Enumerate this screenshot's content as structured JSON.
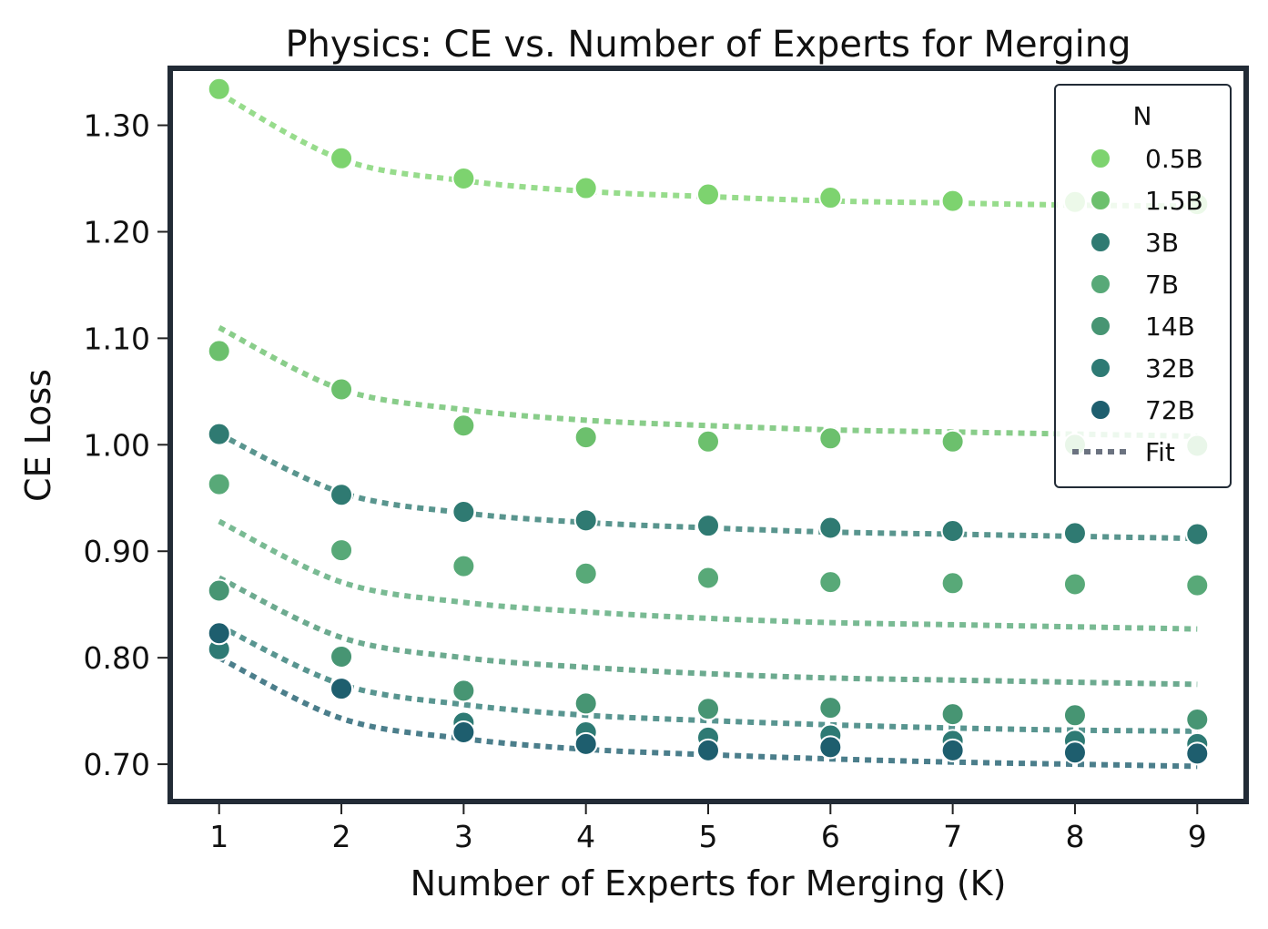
{
  "chart_data": {
    "type": "scatter",
    "title": "Physics: CE vs. Number of Experts for Merging",
    "xlabel": "Number of Experts for Merging (K)",
    "ylabel": "CE Loss",
    "x": [
      1,
      2,
      3,
      4,
      5,
      6,
      7,
      8,
      9
    ],
    "xlim": [
      0.6,
      9.4
    ],
    "ylim": [
      0.665,
      1.3535
    ],
    "xticks": [
      "1",
      "2",
      "3",
      "4",
      "5",
      "6",
      "7",
      "8",
      "9"
    ],
    "yticks": [
      0.7,
      0.8,
      0.9,
      1.0,
      1.1,
      1.2,
      1.3
    ],
    "ytick_labels": [
      "0.70",
      "0.80",
      "0.90",
      "1.00",
      "1.10",
      "1.20",
      "1.30"
    ],
    "grid": false,
    "legend": {
      "title": "N",
      "placement": "top-right",
      "fit_label": "Fit",
      "fit_color": "#6b7280"
    },
    "series": [
      {
        "name": "0.5B",
        "color": "#7dd36f",
        "values": [
          1.334,
          1.269,
          1.25,
          1.241,
          1.235,
          1.232,
          1.229,
          1.228,
          1.226
        ],
        "fit": [
          1.33,
          1.268,
          1.248,
          1.238,
          1.233,
          1.229,
          1.227,
          1.225,
          1.224
        ]
      },
      {
        "name": "1.5B",
        "color": "#6cc06d",
        "values": [
          1.088,
          1.052,
          1.018,
          1.007,
          1.003,
          1.006,
          1.003,
          1.0,
          0.999
        ],
        "fit": [
          1.11,
          1.052,
          1.033,
          1.023,
          1.018,
          1.014,
          1.012,
          1.01,
          1.008
        ]
      },
      {
        "name": "3B",
        "color": "#2f7a72",
        "values": [
          1.01,
          0.953,
          0.937,
          0.929,
          0.924,
          0.922,
          0.919,
          0.917,
          0.916
        ],
        "fit": [
          1.01,
          0.955,
          0.936,
          0.927,
          0.922,
          0.918,
          0.916,
          0.914,
          0.912
        ]
      },
      {
        "name": "7B",
        "color": "#58a978",
        "values": [
          0.963,
          0.901,
          0.886,
          0.879,
          0.875,
          0.871,
          0.87,
          0.869,
          0.868
        ],
        "fit": [
          0.928,
          0.871,
          0.852,
          0.843,
          0.837,
          0.833,
          0.831,
          0.829,
          0.827
        ]
      },
      {
        "name": "14B",
        "color": "#479573",
        "values": [
          0.863,
          0.801,
          0.769,
          0.757,
          0.752,
          0.753,
          0.747,
          0.746,
          0.742
        ],
        "fit": [
          0.875,
          0.819,
          0.8,
          0.791,
          0.785,
          0.781,
          0.779,
          0.777,
          0.775
        ]
      },
      {
        "name": "32B",
        "color": "#2e7a74",
        "values": [
          0.808,
          0.771,
          0.739,
          0.73,
          0.725,
          0.727,
          0.722,
          0.722,
          0.719
        ],
        "fit": [
          0.83,
          0.775,
          0.756,
          0.746,
          0.741,
          0.737,
          0.734,
          0.732,
          0.731
        ]
      },
      {
        "name": "72B",
        "color": "#1e5e6e",
        "values": [
          0.823,
          0.771,
          0.73,
          0.719,
          0.713,
          0.716,
          0.713,
          0.711,
          0.71
        ],
        "fit": [
          0.8,
          0.743,
          0.724,
          0.714,
          0.709,
          0.705,
          0.702,
          0.7,
          0.698
        ]
      }
    ]
  }
}
